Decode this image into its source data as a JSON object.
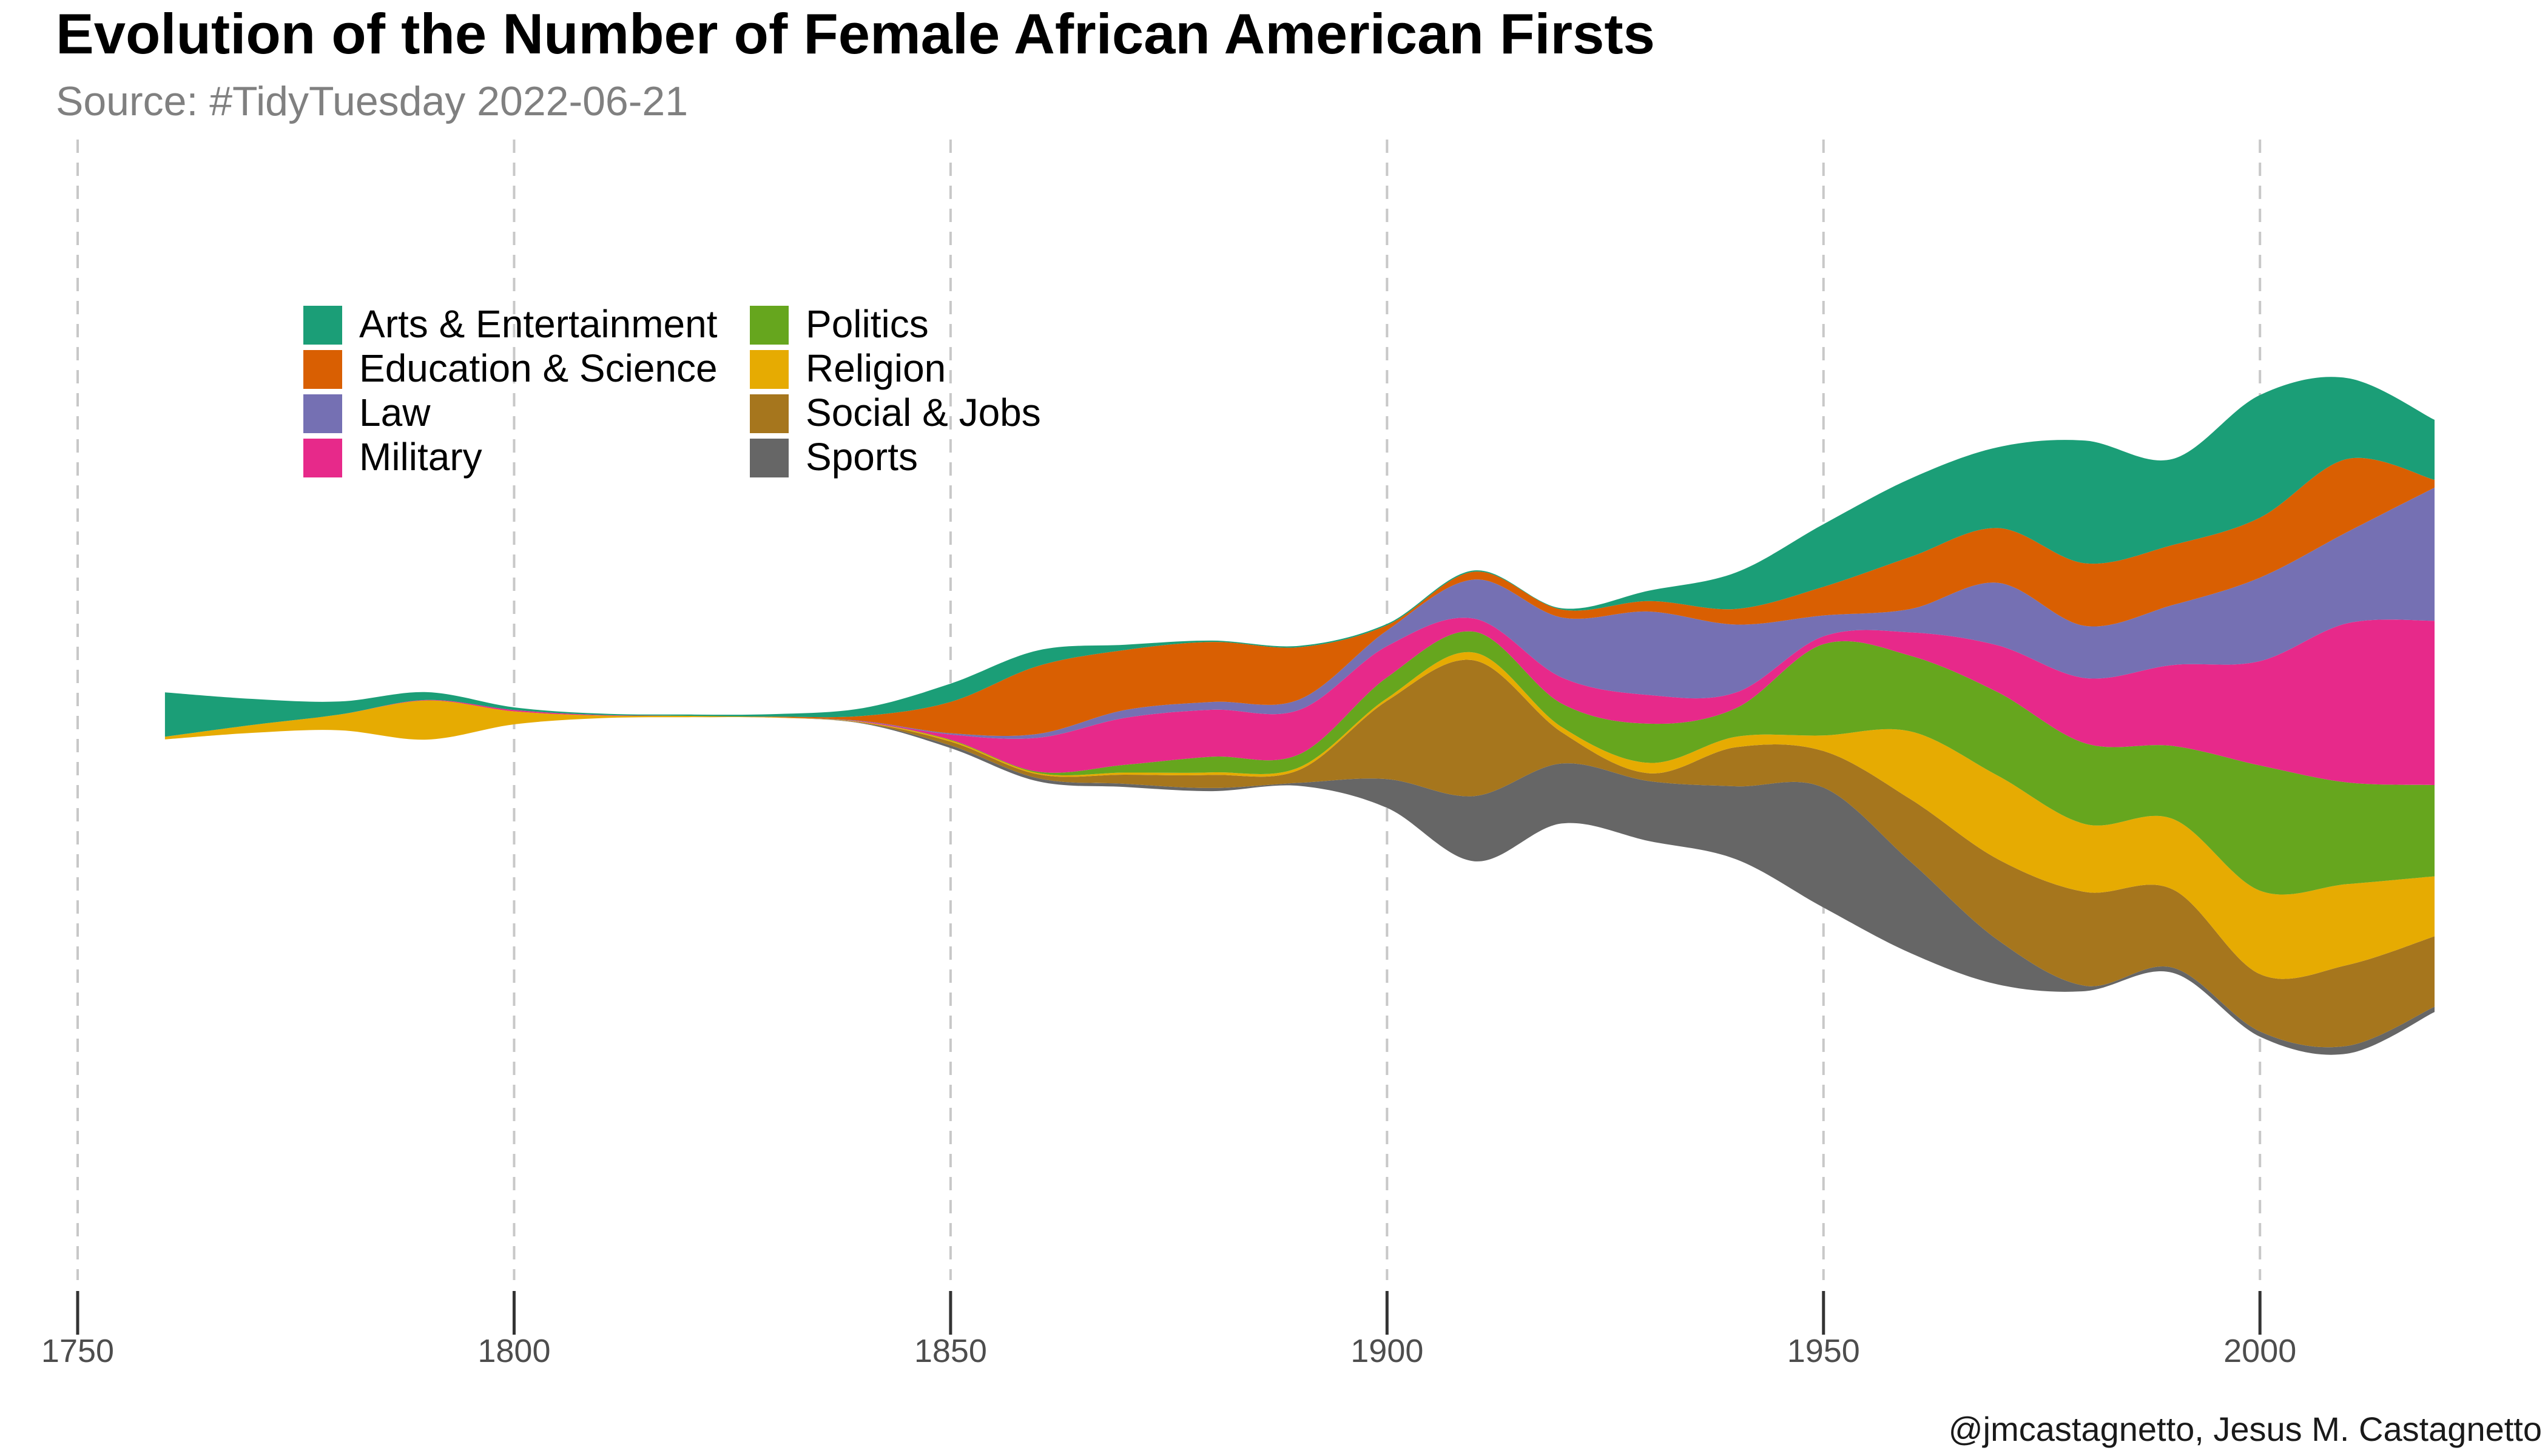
{
  "chart_data": {
    "type": "area",
    "subtype": "streamgraph",
    "title": "Evolution of the Number of Female African American Firsts",
    "subtitle": "Source: #TidyTuesday 2022-06-21",
    "caption": "@jmcastagnetto, Jesus M. Castagnetto",
    "xlim": [
      1750,
      2020
    ],
    "x_ticks": [
      1750,
      1800,
      1850,
      1900,
      1950,
      2000
    ],
    "grid": "vertical dashed lines at x ticks",
    "legend_position": "top-left",
    "x": [
      1760,
      1770,
      1780,
      1790,
      1800,
      1810,
      1820,
      1830,
      1840,
      1850,
      1860,
      1870,
      1880,
      1890,
      1900,
      1910,
      1920,
      1930,
      1940,
      1950,
      1960,
      1970,
      1980,
      1990,
      2000,
      2010,
      2020
    ],
    "series": [
      {
        "name": "Sports",
        "color": "#666666",
        "values": [
          0,
          0,
          0,
          0,
          0,
          0,
          0,
          0,
          0.02,
          0.1,
          0.12,
          0.12,
          0.12,
          0.12,
          1.1,
          2.5,
          2.3,
          2.3,
          2.8,
          4.6,
          3.5,
          1.7,
          0.2,
          0.2,
          0.2,
          0.3,
          0.2
        ]
      },
      {
        "name": "Social & Jobs",
        "color": "#A6761D",
        "values": [
          0,
          0,
          0,
          0,
          0,
          0,
          0,
          0,
          0.02,
          0.15,
          0.15,
          0.35,
          0.5,
          0.5,
          3.0,
          5.2,
          1.2,
          0.3,
          1.5,
          1.4,
          2.4,
          3.1,
          3.6,
          3.0,
          2.2,
          3.1,
          2.7
        ]
      },
      {
        "name": "Religion",
        "color": "#E6AB02",
        "values": [
          0.1,
          0.3,
          0.6,
          1.5,
          0.5,
          0.1,
          0.05,
          0.02,
          0.02,
          0.05,
          0.05,
          0.08,
          0.1,
          0.1,
          0.1,
          0.3,
          0.2,
          0.4,
          0.4,
          0.6,
          2.6,
          3.2,
          2.6,
          2.7,
          3.2,
          3.1,
          2.3
        ]
      },
      {
        "name": "Politics",
        "color": "#66A61E",
        "values": [
          0,
          0,
          0,
          0,
          0,
          0,
          0,
          0,
          0,
          0.02,
          0.05,
          0.3,
          0.6,
          0.5,
          0.8,
          0.8,
          0.9,
          1.5,
          1.1,
          3.5,
          2.9,
          3.2,
          3.1,
          2.8,
          4.8,
          3.9,
          3.5
        ]
      },
      {
        "name": "Military",
        "color": "#E7298A",
        "values": [
          0,
          0,
          0,
          0.02,
          0.05,
          0.02,
          0,
          0,
          0.02,
          0.2,
          1.3,
          1.8,
          1.8,
          1.7,
          1.2,
          0.5,
          1.0,
          1.1,
          0.6,
          0.3,
          0.9,
          1.8,
          2.5,
          3.1,
          4.0,
          6.1,
          6.3
        ]
      },
      {
        "name": "Law",
        "color": "#7570B3",
        "values": [
          0,
          0,
          0,
          0,
          0,
          0,
          0,
          0,
          0.02,
          0.05,
          0.15,
          0.3,
          0.3,
          0.4,
          0.6,
          1.5,
          2.3,
          3.2,
          2.6,
          0.8,
          0.9,
          2.4,
          2.0,
          2.3,
          3.2,
          3.5,
          5.1
        ]
      },
      {
        "name": "Education & Science",
        "color": "#D95F02",
        "values": [
          0,
          0,
          0,
          0,
          0,
          0,
          0,
          0.02,
          0.2,
          1.2,
          2.6,
          2.3,
          2.3,
          2.0,
          0.2,
          0.3,
          0.3,
          0.4,
          0.6,
          1.1,
          2.0,
          2.1,
          2.4,
          2.3,
          2.3,
          2.8,
          0.3
        ]
      },
      {
        "name": "Arts & Entertainment",
        "color": "#1B9E77",
        "values": [
          1.7,
          1.0,
          0.5,
          0.3,
          0.1,
          0.05,
          0.05,
          0.1,
          0.3,
          0.7,
          0.6,
          0.2,
          0.05,
          0.05,
          0.05,
          0.05,
          0.05,
          0.4,
          1.4,
          2.4,
          3.0,
          3.1,
          4.7,
          3.3,
          4.7,
          3.1,
          2.3
        ]
      }
    ]
  }
}
